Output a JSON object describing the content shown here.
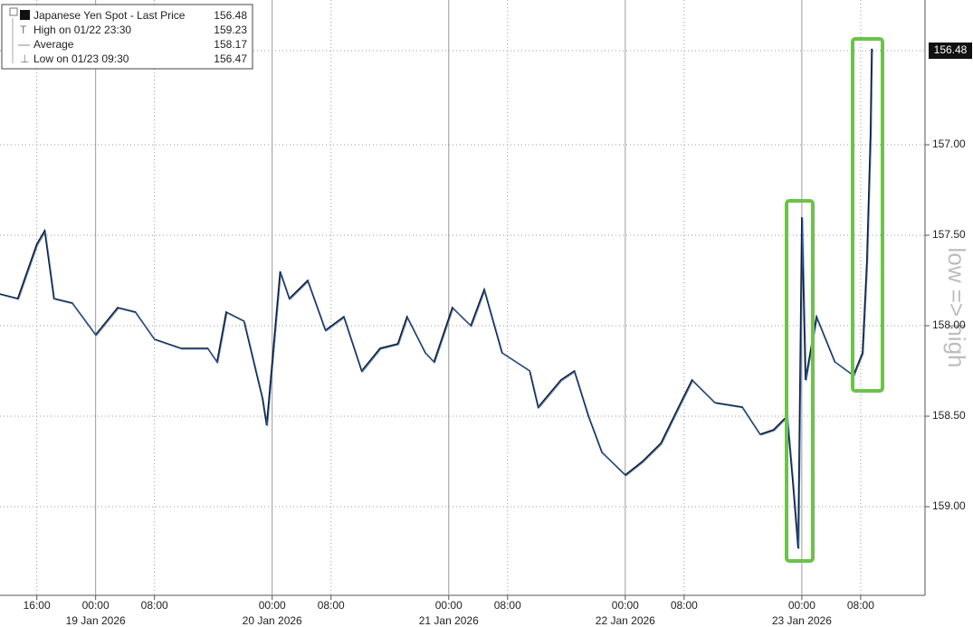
{
  "chart_data": {
    "type": "line",
    "legend": {
      "title": "Japanese Yen Spot - Last Price",
      "last": 156.48,
      "rows": [
        {
          "label": "High on 01/22 23:30",
          "value": 159.23
        },
        {
          "label": "Average",
          "value": 158.17
        },
        {
          "label": "Low on 01/23 09:30",
          "value": 156.47
        }
      ]
    },
    "annotation": "low => high",
    "invert_y": true,
    "x": [
      "2026-01-18 11:00",
      "2026-01-18 13:25",
      "2026-01-18 16:00",
      "2026-01-18 17:05",
      "2026-01-18 18:20",
      "2026-01-18 20:50",
      "2026-01-19 00:00",
      "2026-01-19 03:00",
      "2026-01-19 05:25",
      "2026-01-19 08:00",
      "2026-01-19 11:35",
      "2026-01-19 15:15",
      "2026-01-19 16:30",
      "2026-01-19 17:45",
      "2026-01-19 20:10",
      "2026-01-19 22:40",
      "2026-01-19 23:15",
      "2026-01-20 01:05",
      "2026-01-20 02:20",
      "2026-01-20 04:50",
      "2026-01-20 07:15",
      "2026-01-20 09:45",
      "2026-01-20 12:10",
      "2026-01-20 14:40",
      "2026-01-20 17:05",
      "2026-01-20 18:20",
      "2026-01-20 20:50",
      "2026-01-20 22:00",
      "2026-01-21 00:30",
      "2026-01-21 03:00",
      "2026-01-21 04:50",
      "2026-01-21 07:15",
      "2026-01-21 11:00",
      "2026-01-21 12:10",
      "2026-01-21 15:15",
      "2026-01-21 17:05",
      "2026-01-21 19:00",
      "2026-01-21 20:50",
      "2026-01-22 00:00",
      "2026-01-22 02:20",
      "2026-01-22 04:50",
      "2026-01-22 07:15",
      "2026-01-22 09:05",
      "2026-01-22 12:10",
      "2026-01-22 15:55",
      "2026-01-22 18:20",
      "2026-01-22 20:10",
      "2026-01-22 22:00",
      "2026-01-22 22:45",
      "2026-01-22 23:30",
      "2026-01-23 00:00",
      "2026-01-23 00:30",
      "2026-01-23 02:00",
      "2026-01-23 04:30",
      "2026-01-23 07:00",
      "2026-01-23 08:15",
      "2026-01-23 08:50",
      "2026-01-23 09:20",
      "2026-01-23 09:30",
      "2026-01-23 09:35"
    ],
    "series": [
      {
        "name": "Japanese Yen Spot",
        "color": "#1a1a1a",
        "accent": "#2a6fd6",
        "values": [
          157.825,
          157.85,
          157.55,
          157.475,
          157.85,
          157.875,
          158.05,
          157.9,
          157.925,
          158.075,
          158.125,
          158.125,
          158.2,
          157.925,
          157.975,
          158.4,
          158.55,
          157.7,
          157.85,
          157.75,
          158.025,
          157.95,
          158.25,
          158.125,
          158.1,
          157.95,
          158.15,
          158.2,
          157.9,
          158.0,
          157.8,
          158.15,
          158.25,
          158.45,
          158.3,
          158.25,
          158.5,
          158.7,
          158.825,
          158.75,
          158.65,
          158.45,
          158.3,
          158.425,
          158.45,
          158.6,
          158.575,
          158.5,
          158.85,
          159.23,
          157.4,
          158.3,
          157.95,
          158.2,
          158.275,
          158.15,
          157.65,
          156.95,
          156.47,
          156.48
        ]
      }
    ],
    "xlim": [
      "2026-01-18 11:00",
      "2026-01-23 16:45"
    ],
    "xticks": [
      {
        "value": "2026-01-18 16:00",
        "label": "16:00"
      },
      {
        "value": "2026-01-19 00:00",
        "label": "00:00"
      },
      {
        "value": "2026-01-19 08:00",
        "label": "08:00"
      },
      {
        "value": "2026-01-20 00:00",
        "label": "00:00"
      },
      {
        "value": "2026-01-20 08:00",
        "label": "08:00"
      },
      {
        "value": "2026-01-21 00:00",
        "label": "00:00"
      },
      {
        "value": "2026-01-21 08:00",
        "label": "08:00"
      },
      {
        "value": "2026-01-22 00:00",
        "label": "00:00"
      },
      {
        "value": "2026-01-22 08:00",
        "label": "08:00"
      },
      {
        "value": "2026-01-23 00:00",
        "label": "00:00"
      },
      {
        "value": "2026-01-23 08:00",
        "label": "08:00"
      }
    ],
    "date_labels": [
      {
        "value": "2026-01-19 00:00",
        "label": "19 Jan 2026"
      },
      {
        "value": "2026-01-20 00:00",
        "label": "20 Jan 2026"
      },
      {
        "value": "2026-01-21 00:00",
        "label": "21 Jan 2026"
      },
      {
        "value": "2026-01-22 00:00",
        "label": "22 Jan 2026"
      },
      {
        "value": "2026-01-23 00:00",
        "label": "23 Jan 2026"
      }
    ],
    "ylim": [
      159.49,
      156.2
    ],
    "yticks": [
      {
        "value": 157,
        "label": "157.00"
      },
      {
        "value": 157.5,
        "label": "157.50"
      },
      {
        "value": 158,
        "label": "158.00"
      },
      {
        "value": 158.5,
        "label": "158.50"
      },
      {
        "value": 159,
        "label": "159.00"
      }
    ],
    "last_price": 156.48,
    "grid": true
  }
}
